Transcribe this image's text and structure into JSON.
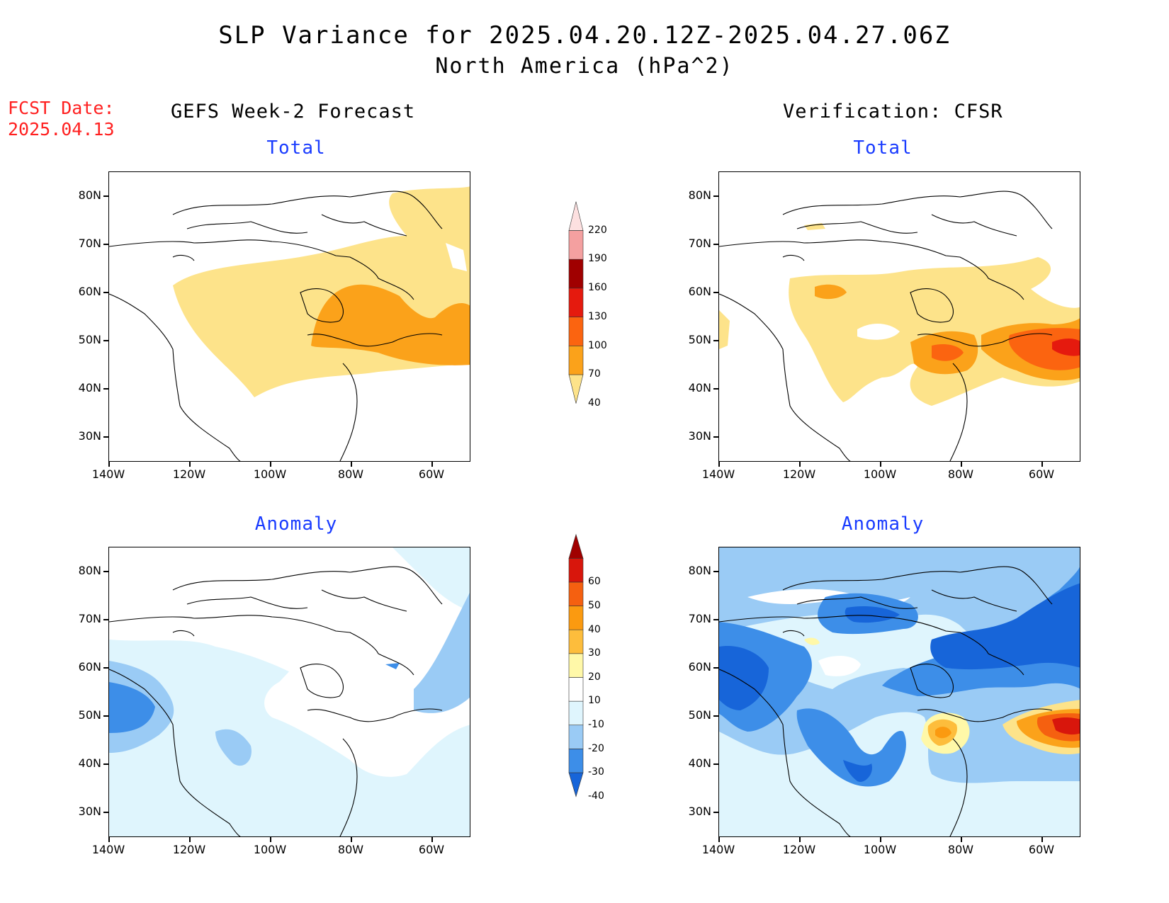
{
  "title": {
    "line1": "SLP Variance for 2025.04.20.12Z-2025.04.27.06Z",
    "line2": "North America (hPa^2)"
  },
  "forecast_date": {
    "label": "FCST Date:",
    "value": "2025.04.13"
  },
  "left_header": "GEFS Week-2 Forecast",
  "right_header": "Verification: CFSR",
  "panel_titles": {
    "top_left": "Total",
    "top_right": "Total",
    "bottom_left": "Anomaly",
    "bottom_right": "Anomaly"
  },
  "axes": {
    "lat_labels": [
      "80N",
      "70N",
      "60N",
      "50N",
      "40N",
      "30N"
    ],
    "lon_labels": [
      "140W",
      "120W",
      "100W",
      "80W",
      "60W"
    ]
  },
  "colorbars": {
    "total": {
      "levels": [
        "40",
        "70",
        "100",
        "130",
        "160",
        "190",
        "220"
      ],
      "colors": [
        "#fde38a",
        "#fba21a",
        "#fb6410",
        "#e51a0e",
        "#a00000",
        "#f4a0a0",
        "#fde0e0"
      ]
    },
    "anomaly": {
      "levels": [
        "-40",
        "-30",
        "-20",
        "-10",
        "10",
        "20",
        "30",
        "40",
        "50",
        "60"
      ],
      "colors": [
        "#1765d9",
        "#3d8ee8",
        "#9acbf5",
        "#dff5fd",
        "#ffffff",
        "#fff8a8",
        "#fdbd3c",
        "#fb9a10",
        "#f56010",
        "#d8160c",
        "#a00000"
      ]
    }
  },
  "colors": {
    "fcst_date": "#ff2020",
    "panel_subtitle": "#1a3cff"
  }
}
